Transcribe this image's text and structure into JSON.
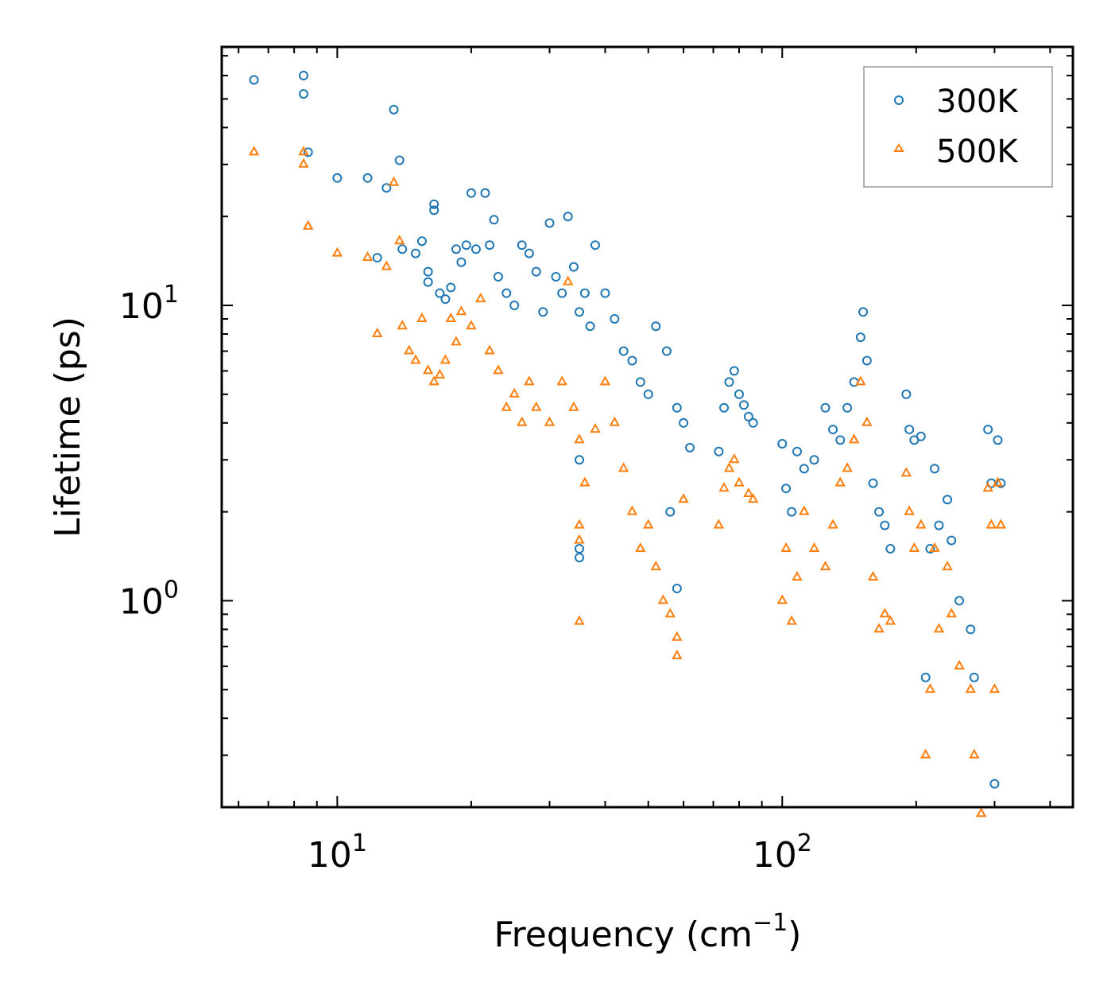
{
  "chart_data": {
    "type": "scatter",
    "title": "",
    "xlabel": "Frequency (cm",
    "xlabel_sup": "−1",
    "xlabel_end": ")",
    "ylabel": "Lifetime (ps)",
    "xscale": "log",
    "yscale": "log",
    "xlim": [
      5.5,
      450
    ],
    "ylim": [
      0.2,
      75
    ],
    "x_ticks": [
      {
        "value": 10,
        "base": "10",
        "exp": "1"
      },
      {
        "value": 100,
        "base": "10",
        "exp": "2"
      }
    ],
    "y_ticks": [
      {
        "value": 1,
        "base": "10",
        "exp": "0"
      },
      {
        "value": 10,
        "base": "10",
        "exp": "1"
      }
    ],
    "legend_position": "top-right",
    "series": [
      {
        "name": "300K",
        "marker": "circle",
        "color": "#1f77b4",
        "points": [
          [
            6.5,
            58
          ],
          [
            8.4,
            60
          ],
          [
            8.4,
            52
          ],
          [
            8.6,
            33
          ],
          [
            10.0,
            27
          ],
          [
            11.7,
            27
          ],
          [
            12.9,
            25
          ],
          [
            13.4,
            46
          ],
          [
            13.8,
            31
          ],
          [
            12.3,
            14.5
          ],
          [
            14.0,
            15.5
          ],
          [
            15.0,
            15.0
          ],
          [
            15.5,
            16.5
          ],
          [
            16.0,
            13.0
          ],
          [
            16.5,
            22
          ],
          [
            16.5,
            21
          ],
          [
            16.0,
            12.0
          ],
          [
            17.0,
            11.0
          ],
          [
            17.5,
            10.5
          ],
          [
            18.0,
            11.5
          ],
          [
            18.5,
            15.5
          ],
          [
            19.0,
            14.0
          ],
          [
            19.5,
            16.0
          ],
          [
            20.0,
            24
          ],
          [
            20.5,
            15.5
          ],
          [
            21.5,
            24
          ],
          [
            22.0,
            16.0
          ],
          [
            22.5,
            19.5
          ],
          [
            23.0,
            12.5
          ],
          [
            24.0,
            11.0
          ],
          [
            25.0,
            10.0
          ],
          [
            26.0,
            16.0
          ],
          [
            27.0,
            15.0
          ],
          [
            28.0,
            13.0
          ],
          [
            29.0,
            9.5
          ],
          [
            30.0,
            19.0
          ],
          [
            31.0,
            12.5
          ],
          [
            32.0,
            11.0
          ],
          [
            33.0,
            20.0
          ],
          [
            34.0,
            13.5
          ],
          [
            35.0,
            9.5
          ],
          [
            36.0,
            11.0
          ],
          [
            37.0,
            8.5
          ],
          [
            38.0,
            16.0
          ],
          [
            40.0,
            11.0
          ],
          [
            42.0,
            9.0
          ],
          [
            44.0,
            7.0
          ],
          [
            46.0,
            6.5
          ],
          [
            48.0,
            5.5
          ],
          [
            50.0,
            5.0
          ],
          [
            52.0,
            8.5
          ],
          [
            55.0,
            7.0
          ],
          [
            58.0,
            4.5
          ],
          [
            60.0,
            4.0
          ],
          [
            62.0,
            3.3
          ],
          [
            35.0,
            3.0
          ],
          [
            35.0,
            1.5
          ],
          [
            35.0,
            1.4
          ],
          [
            58.0,
            1.1
          ],
          [
            56.0,
            2.0
          ],
          [
            72.0,
            3.2
          ],
          [
            74.0,
            4.5
          ],
          [
            76.0,
            5.5
          ],
          [
            78.0,
            6.0
          ],
          [
            80.0,
            5.0
          ],
          [
            82.0,
            4.6
          ],
          [
            84.0,
            4.2
          ],
          [
            86.0,
            4.0
          ],
          [
            100.0,
            3.4
          ],
          [
            102.0,
            2.4
          ],
          [
            105.0,
            2.0
          ],
          [
            108.0,
            3.2
          ],
          [
            112.0,
            2.8
          ],
          [
            118.0,
            3.0
          ],
          [
            125.0,
            4.5
          ],
          [
            130.0,
            3.8
          ],
          [
            135.0,
            3.5
          ],
          [
            140.0,
            4.5
          ],
          [
            145.0,
            5.5
          ],
          [
            150.0,
            7.8
          ],
          [
            152.0,
            9.5
          ],
          [
            155.0,
            6.5
          ],
          [
            160.0,
            2.5
          ],
          [
            165.0,
            2.0
          ],
          [
            170.0,
            1.8
          ],
          [
            175.0,
            1.5
          ],
          [
            190.0,
            5.0
          ],
          [
            193.0,
            3.8
          ],
          [
            198.0,
            3.5
          ],
          [
            205.0,
            3.6
          ],
          [
            210.0,
            0.55
          ],
          [
            215.0,
            1.5
          ],
          [
            220.0,
            2.8
          ],
          [
            225.0,
            1.8
          ],
          [
            235.0,
            2.2
          ],
          [
            240.0,
            1.6
          ],
          [
            250.0,
            1.0
          ],
          [
            265.0,
            0.8
          ],
          [
            270.0,
            0.55
          ],
          [
            290.0,
            3.8
          ],
          [
            295.0,
            2.5
          ],
          [
            300.0,
            0.24
          ],
          [
            305.0,
            3.5
          ],
          [
            310.0,
            2.5
          ]
        ]
      },
      {
        "name": "500K",
        "marker": "triangle",
        "color": "#ff7f0e",
        "points": [
          [
            6.5,
            33
          ],
          [
            8.4,
            33
          ],
          [
            8.4,
            30
          ],
          [
            8.6,
            18.5
          ],
          [
            10.0,
            15.0
          ],
          [
            11.7,
            14.5
          ],
          [
            12.3,
            8.0
          ],
          [
            12.9,
            13.5
          ],
          [
            13.4,
            26
          ],
          [
            13.8,
            16.5
          ],
          [
            14.0,
            8.5
          ],
          [
            14.5,
            7.0
          ],
          [
            15.0,
            6.5
          ],
          [
            15.5,
            9.0
          ],
          [
            16.0,
            6.0
          ],
          [
            16.5,
            5.5
          ],
          [
            17.0,
            5.8
          ],
          [
            17.5,
            6.5
          ],
          [
            18.0,
            9.0
          ],
          [
            18.5,
            7.5
          ],
          [
            19.0,
            9.5
          ],
          [
            20.0,
            8.5
          ],
          [
            21.0,
            10.5
          ],
          [
            22.0,
            7.0
          ],
          [
            23.0,
            6.0
          ],
          [
            24.0,
            4.5
          ],
          [
            25.0,
            5.0
          ],
          [
            26.0,
            4.0
          ],
          [
            27.0,
            5.5
          ],
          [
            28.0,
            4.5
          ],
          [
            30.0,
            4.0
          ],
          [
            32.0,
            5.5
          ],
          [
            33.0,
            12.0
          ],
          [
            34.0,
            4.5
          ],
          [
            35.0,
            3.5
          ],
          [
            35.0,
            1.8
          ],
          [
            35.0,
            1.6
          ],
          [
            35.0,
            0.85
          ],
          [
            36.0,
            2.5
          ],
          [
            38.0,
            3.8
          ],
          [
            40.0,
            5.5
          ],
          [
            42.0,
            4.0
          ],
          [
            44.0,
            2.8
          ],
          [
            46.0,
            2.0
          ],
          [
            48.0,
            1.5
          ],
          [
            50.0,
            1.8
          ],
          [
            52.0,
            1.3
          ],
          [
            54.0,
            1.0
          ],
          [
            56.0,
            0.9
          ],
          [
            58.0,
            0.75
          ],
          [
            58.0,
            0.65
          ],
          [
            60.0,
            2.2
          ],
          [
            72.0,
            1.8
          ],
          [
            74.0,
            2.4
          ],
          [
            76.0,
            2.8
          ],
          [
            78.0,
            3.0
          ],
          [
            80.0,
            2.5
          ],
          [
            84.0,
            2.3
          ],
          [
            86.0,
            2.2
          ],
          [
            100.0,
            1.0
          ],
          [
            102.0,
            1.5
          ],
          [
            105.0,
            0.85
          ],
          [
            108.0,
            1.2
          ],
          [
            112.0,
            2.0
          ],
          [
            118.0,
            1.5
          ],
          [
            125.0,
            1.3
          ],
          [
            130.0,
            1.8
          ],
          [
            135.0,
            2.5
          ],
          [
            140.0,
            2.8
          ],
          [
            145.0,
            3.5
          ],
          [
            150.0,
            5.5
          ],
          [
            155.0,
            4.0
          ],
          [
            160.0,
            1.2
          ],
          [
            165.0,
            0.8
          ],
          [
            170.0,
            0.9
          ],
          [
            175.0,
            0.85
          ],
          [
            190.0,
            2.7
          ],
          [
            193.0,
            2.0
          ],
          [
            198.0,
            1.5
          ],
          [
            205.0,
            1.8
          ],
          [
            210.0,
            0.3
          ],
          [
            215.0,
            0.5
          ],
          [
            220.0,
            1.5
          ],
          [
            225.0,
            0.8
          ],
          [
            235.0,
            1.3
          ],
          [
            240.0,
            0.9
          ],
          [
            250.0,
            0.6
          ],
          [
            265.0,
            0.5
          ],
          [
            270.0,
            0.3
          ],
          [
            280.0,
            0.19
          ],
          [
            290.0,
            2.4
          ],
          [
            295.0,
            1.8
          ],
          [
            300.0,
            0.5
          ],
          [
            305.0,
            2.5
          ],
          [
            310.0,
            1.8
          ]
        ]
      }
    ]
  }
}
